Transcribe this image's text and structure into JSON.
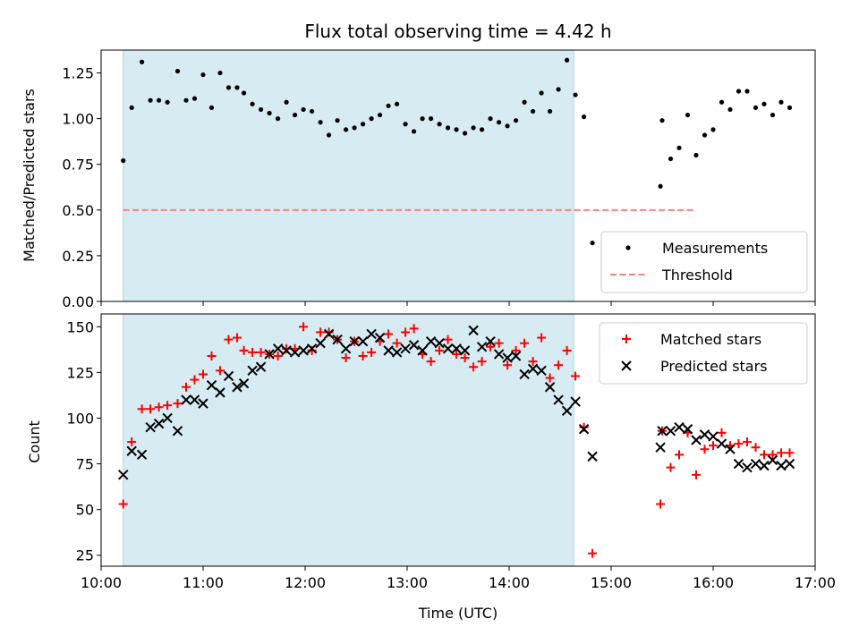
{
  "title": "Flux total observing time = 4.42 h",
  "xlabel": "Time (UTC)",
  "x_tick_labels": [
    "10:00",
    "11:00",
    "12:00",
    "13:00",
    "14:00",
    "15:00",
    "16:00",
    "17:00"
  ],
  "colors": {
    "span_fill": "#add8e6",
    "measurements": "#000000",
    "threshold": "#ff7f7f",
    "matched": "#ff0000",
    "predicted": "#000000"
  },
  "chart_data": [
    {
      "type": "scatter",
      "ylabel": "Matched/Predicted stars",
      "xlim": [
        "10:00",
        "17:00"
      ],
      "ylim": [
        0,
        1.375
      ],
      "y_ticks": [
        "0.00",
        "0.25",
        "0.50",
        "0.75",
        "1.00",
        "1.25"
      ],
      "grid": false,
      "legend_position": "lower-right",
      "shaded_span": [
        "10:13",
        "14:38"
      ],
      "threshold": {
        "name": "Threshold",
        "value": 0.5,
        "x_range": [
          "10:13",
          "15:50"
        ],
        "style": "dashed"
      },
      "series": [
        {
          "name": "Measurements",
          "points": [
            [
              "10:13",
              0.77
            ],
            [
              "10:18",
              1.06
            ],
            [
              "10:24",
              1.31
            ],
            [
              "10:29",
              1.1
            ],
            [
              "10:34",
              1.1
            ],
            [
              "10:39",
              1.09
            ],
            [
              "10:45",
              1.26
            ],
            [
              "10:50",
              1.1
            ],
            [
              "10:55",
              1.11
            ],
            [
              "11:00",
              1.24
            ],
            [
              "11:05",
              1.06
            ],
            [
              "11:10",
              1.25
            ],
            [
              "11:15",
              1.17
            ],
            [
              "11:20",
              1.17
            ],
            [
              "11:24",
              1.14
            ],
            [
              "11:29",
              1.08
            ],
            [
              "11:34",
              1.05
            ],
            [
              "11:39",
              1.03
            ],
            [
              "11:44",
              1.0
            ],
            [
              "11:49",
              1.09
            ],
            [
              "11:54",
              1.02
            ],
            [
              "11:59",
              1.05
            ],
            [
              "12:04",
              1.04
            ],
            [
              "12:09",
              0.98
            ],
            [
              "12:14",
              0.91
            ],
            [
              "12:19",
              0.99
            ],
            [
              "12:24",
              0.94
            ],
            [
              "12:29",
              0.95
            ],
            [
              "12:34",
              0.97
            ],
            [
              "12:39",
              1.0
            ],
            [
              "12:44",
              1.02
            ],
            [
              "12:49",
              1.07
            ],
            [
              "12:54",
              1.08
            ],
            [
              "12:59",
              0.97
            ],
            [
              "13:04",
              0.93
            ],
            [
              "13:09",
              1.0
            ],
            [
              "13:14",
              1.0
            ],
            [
              "13:19",
              0.97
            ],
            [
              "13:24",
              0.95
            ],
            [
              "13:29",
              0.94
            ],
            [
              "13:34",
              0.92
            ],
            [
              "13:39",
              0.95
            ],
            [
              "13:44",
              0.94
            ],
            [
              "13:49",
              1.0
            ],
            [
              "13:54",
              0.98
            ],
            [
              "13:59",
              0.96
            ],
            [
              "14:04",
              0.99
            ],
            [
              "14:09",
              1.09
            ],
            [
              "14:14",
              1.04
            ],
            [
              "14:19",
              1.14
            ],
            [
              "14:24",
              1.04
            ],
            [
              "14:29",
              1.16
            ],
            [
              "14:34",
              1.32
            ],
            [
              "14:39",
              1.13
            ],
            [
              "14:44",
              1.01
            ],
            [
              "14:49",
              0.32
            ],
            [
              "15:29",
              0.63
            ],
            [
              "15:30",
              0.99
            ],
            [
              "15:35",
              0.78
            ],
            [
              "15:40",
              0.84
            ],
            [
              "15:45",
              1.02
            ],
            [
              "15:50",
              0.8
            ],
            [
              "15:55",
              0.91
            ],
            [
              "16:00",
              0.94
            ],
            [
              "16:05",
              1.09
            ],
            [
              "16:10",
              1.05
            ],
            [
              "16:15",
              1.15
            ],
            [
              "16:20",
              1.15
            ],
            [
              "16:25",
              1.06
            ],
            [
              "16:30",
              1.08
            ],
            [
              "16:35",
              1.02
            ],
            [
              "16:40",
              1.09
            ],
            [
              "16:45",
              1.06
            ]
          ]
        }
      ]
    },
    {
      "type": "scatter",
      "ylabel": "Count",
      "xlim": [
        "10:00",
        "17:00"
      ],
      "ylim": [
        19,
        157
      ],
      "y_ticks": [
        "25",
        "50",
        "75",
        "100",
        "125",
        "150"
      ],
      "grid": false,
      "legend_position": "upper-right",
      "shaded_span": [
        "10:13",
        "14:38"
      ],
      "series": [
        {
          "name": "Matched stars",
          "marker": "plus",
          "points": [
            [
              "10:13",
              53
            ],
            [
              "10:18",
              87
            ],
            [
              "10:24",
              105
            ],
            [
              "10:29",
              105
            ],
            [
              "10:34",
              106
            ],
            [
              "10:39",
              107
            ],
            [
              "10:45",
              108
            ],
            [
              "10:50",
              117
            ],
            [
              "10:55",
              121
            ],
            [
              "11:00",
              124
            ],
            [
              "11:05",
              134
            ],
            [
              "11:10",
              126
            ],
            [
              "11:15",
              143
            ],
            [
              "11:20",
              144
            ],
            [
              "11:24",
              137
            ],
            [
              "11:29",
              136
            ],
            [
              "11:34",
              136
            ],
            [
              "11:39",
              135
            ],
            [
              "11:44",
              134
            ],
            [
              "11:49",
              138
            ],
            [
              "11:54",
              138
            ],
            [
              "11:59",
              150
            ],
            [
              "12:04",
              137
            ],
            [
              "12:09",
              147
            ],
            [
              "12:14",
              147
            ],
            [
              "12:19",
              143
            ],
            [
              "12:24",
              133
            ],
            [
              "12:29",
              142
            ],
            [
              "12:34",
              134
            ],
            [
              "12:39",
              136
            ],
            [
              "12:44",
              142
            ],
            [
              "12:49",
              146
            ],
            [
              "12:54",
              141
            ],
            [
              "12:59",
              147
            ],
            [
              "13:04",
              149
            ],
            [
              "13:09",
              135
            ],
            [
              "13:14",
              131
            ],
            [
              "13:19",
              137
            ],
            [
              "13:24",
              143
            ],
            [
              "13:29",
              135
            ],
            [
              "13:34",
              133
            ],
            [
              "13:39",
              128
            ],
            [
              "13:44",
              131
            ],
            [
              "13:49",
              139
            ],
            [
              "13:54",
              141
            ],
            [
              "13:59",
              129
            ],
            [
              "14:04",
              137
            ],
            [
              "14:09",
              141
            ],
            [
              "14:14",
              131
            ],
            [
              "14:19",
              144
            ],
            [
              "14:24",
              122
            ],
            [
              "14:29",
              129
            ],
            [
              "14:34",
              137
            ],
            [
              "14:39",
              123
            ],
            [
              "14:44",
              95
            ],
            [
              "14:49",
              26
            ],
            [
              "15:29",
              53
            ],
            [
              "15:30",
              93
            ],
            [
              "15:35",
              73
            ],
            [
              "15:40",
              80
            ],
            [
              "15:45",
              92
            ],
            [
              "15:50",
              69
            ],
            [
              "15:55",
              83
            ],
            [
              "16:00",
              85
            ],
            [
              "16:05",
              92
            ],
            [
              "16:10",
              85
            ],
            [
              "16:15",
              86
            ],
            [
              "16:20",
              87
            ],
            [
              "16:25",
              84
            ],
            [
              "16:30",
              80
            ],
            [
              "16:35",
              80
            ],
            [
              "16:40",
              81
            ],
            [
              "16:45",
              81
            ]
          ]
        },
        {
          "name": "Predicted stars",
          "marker": "x",
          "points": [
            [
              "10:13",
              69
            ],
            [
              "10:18",
              82
            ],
            [
              "10:24",
              80
            ],
            [
              "10:29",
              95
            ],
            [
              "10:34",
              97
            ],
            [
              "10:39",
              100
            ],
            [
              "10:45",
              93
            ],
            [
              "10:50",
              110
            ],
            [
              "10:55",
              110
            ],
            [
              "11:00",
              108
            ],
            [
              "11:05",
              118
            ],
            [
              "11:10",
              114
            ],
            [
              "11:15",
              123
            ],
            [
              "11:20",
              117
            ],
            [
              "11:24",
              119
            ],
            [
              "11:29",
              126
            ],
            [
              "11:34",
              128
            ],
            [
              "11:39",
              135
            ],
            [
              "11:44",
              138
            ],
            [
              "11:49",
              137
            ],
            [
              "11:54",
              136
            ],
            [
              "11:59",
              137
            ],
            [
              "12:04",
              138
            ],
            [
              "12:09",
              141
            ],
            [
              "12:14",
              146
            ],
            [
              "12:19",
              143
            ],
            [
              "12:24",
              138
            ],
            [
              "12:29",
              142
            ],
            [
              "12:34",
              142
            ],
            [
              "12:39",
              146
            ],
            [
              "12:44",
              144
            ],
            [
              "12:49",
              137
            ],
            [
              "12:54",
              136
            ],
            [
              "12:59",
              138
            ],
            [
              "13:04",
              140
            ],
            [
              "13:09",
              137
            ],
            [
              "13:14",
              142
            ],
            [
              "13:19",
              141
            ],
            [
              "13:24",
              138
            ],
            [
              "13:29",
              138
            ],
            [
              "13:34",
              137
            ],
            [
              "13:39",
              148
            ],
            [
              "13:44",
              139
            ],
            [
              "13:49",
              142
            ],
            [
              "13:54",
              135
            ],
            [
              "13:59",
              133
            ],
            [
              "14:04",
              134
            ],
            [
              "14:09",
              124
            ],
            [
              "14:14",
              127
            ],
            [
              "14:19",
              126
            ],
            [
              "14:24",
              117
            ],
            [
              "14:29",
              110
            ],
            [
              "14:34",
              104
            ],
            [
              "14:39",
              109
            ],
            [
              "14:44",
              94
            ],
            [
              "14:49",
              79
            ],
            [
              "15:29",
              84
            ],
            [
              "15:30",
              93
            ],
            [
              "15:35",
              93
            ],
            [
              "15:40",
              95
            ],
            [
              "15:45",
              94
            ],
            [
              "15:50",
              88
            ],
            [
              "15:55",
              91
            ],
            [
              "16:00",
              90
            ],
            [
              "16:05",
              86
            ],
            [
              "16:10",
              83
            ],
            [
              "16:15",
              75
            ],
            [
              "16:20",
              73
            ],
            [
              "16:25",
              75
            ],
            [
              "16:30",
              74
            ],
            [
              "16:35",
              77
            ],
            [
              "16:40",
              74
            ],
            [
              "16:45",
              75
            ]
          ]
        }
      ]
    }
  ]
}
